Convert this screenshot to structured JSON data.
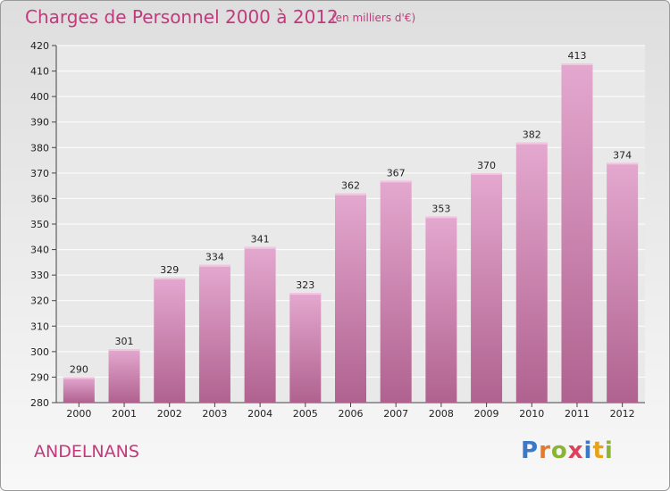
{
  "header": {
    "title": "Charges de Personnel 2000 à 2012",
    "subtitle": "(en milliers d'€)"
  },
  "footer": {
    "place": "ANDELNANS",
    "brand_letters": [
      "P",
      "r",
      "o",
      "x",
      "i",
      "t",
      "i"
    ],
    "brand_colors": [
      "#3c78c8",
      "#e8782a",
      "#8ab534",
      "#e0405a",
      "#3c78c8",
      "#e8a21a",
      "#8ab534"
    ]
  },
  "chart_data": {
    "type": "bar",
    "title": "Charges de Personnel 2000 à 2012",
    "subtitle": "(en milliers d'€)",
    "xlabel": "",
    "ylabel": "",
    "categories": [
      "2000",
      "2001",
      "2002",
      "2003",
      "2004",
      "2005",
      "2006",
      "2007",
      "2008",
      "2009",
      "2010",
      "2011",
      "2012"
    ],
    "values": [
      290,
      301,
      329,
      334,
      341,
      323,
      362,
      367,
      353,
      370,
      382,
      413,
      374
    ],
    "ylim": [
      280,
      420
    ],
    "yticks": [
      280,
      290,
      300,
      310,
      320,
      330,
      340,
      350,
      360,
      370,
      380,
      390,
      400,
      410,
      420
    ],
    "grid": true,
    "legend": "none",
    "bar_color": "#d98ab8"
  }
}
